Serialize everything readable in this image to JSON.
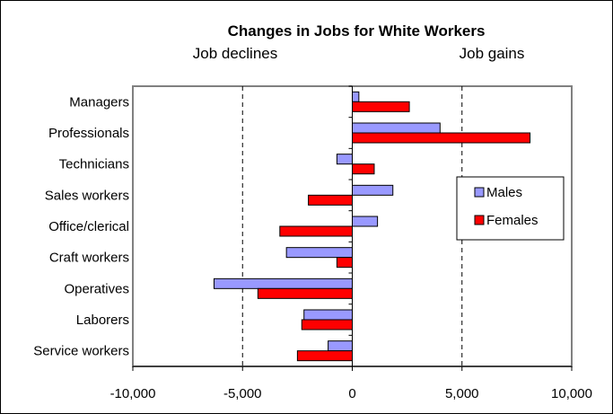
{
  "chart_data": {
    "type": "bar",
    "orientation": "horizontal",
    "title": "Changes in Jobs for White Workers",
    "subtitle_left": "Job declines",
    "subtitle_right": "Job gains",
    "categories": [
      "Managers",
      "Professionals",
      "Technicians",
      "Sales workers",
      "Office/clerical",
      "Craft workers",
      "Operatives",
      "Laborers",
      "Service workers"
    ],
    "series": [
      {
        "name": "Males",
        "color": "#9999ff",
        "values": [
          300,
          4000,
          -700,
          1850,
          1150,
          -3000,
          -6300,
          -2200,
          -1100
        ]
      },
      {
        "name": "Females",
        "color": "#ff0000",
        "values": [
          2600,
          8100,
          1000,
          -2000,
          -3300,
          -700,
          -4300,
          -2300,
          -2500
        ]
      }
    ],
    "xlim": [
      -10000,
      10000
    ],
    "xticks": [
      -10000,
      -5000,
      0,
      5000,
      10000
    ],
    "xtick_labels": [
      "-10,000",
      "-5,000",
      "0",
      "5,000",
      "10,000"
    ],
    "gridlines": [
      -5000,
      5000
    ],
    "grid_style": "dashed",
    "legend_position": "right"
  }
}
